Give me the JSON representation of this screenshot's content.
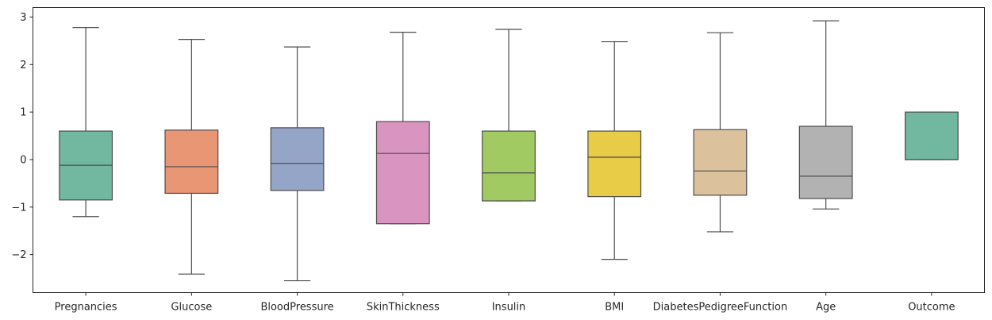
{
  "chart_data": {
    "type": "box",
    "title": "",
    "xlabel": "",
    "ylabel": "",
    "ylim": [
      -2.8,
      3.2
    ],
    "yticks": [
      {
        "value": 3,
        "label": "3"
      },
      {
        "value": 2,
        "label": "2"
      },
      {
        "value": 1,
        "label": "1"
      },
      {
        "value": 0,
        "label": "0"
      },
      {
        "value": -1,
        "label": "−1"
      },
      {
        "value": -2,
        "label": "−2"
      }
    ],
    "grid": false,
    "categories": [
      "Pregnancies",
      "Glucose",
      "BloodPressure",
      "SkinThickness",
      "Insulin",
      "BMI",
      "DiabetesPedigreeFunction",
      "Age",
      "Outcome"
    ],
    "boxes": [
      {
        "category": "Pregnancies",
        "whisker_low": -1.2,
        "q1": -0.85,
        "median": -0.12,
        "q3": 0.6,
        "whisker_high": 2.78,
        "color": "#72b7a0"
      },
      {
        "category": "Glucose",
        "whisker_low": -2.41,
        "q1": -0.71,
        "median": -0.15,
        "q3": 0.62,
        "whisker_high": 2.53,
        "color": "#e99675"
      },
      {
        "category": "BloodPressure",
        "whisker_low": -2.55,
        "q1": -0.65,
        "median": -0.08,
        "q3": 0.67,
        "whisker_high": 2.37,
        "color": "#95a5c8"
      },
      {
        "category": "SkinThickness",
        "whisker_low": -1.35,
        "q1": -1.35,
        "median": 0.13,
        "q3": 0.8,
        "whisker_high": 2.68,
        "color": "#da94c0"
      },
      {
        "category": "Insulin",
        "whisker_low": -0.87,
        "q1": -0.87,
        "median": -0.28,
        "q3": 0.6,
        "whisker_high": 2.74,
        "color": "#a1ca62"
      },
      {
        "category": "BMI",
        "whisker_low": -2.1,
        "q1": -0.78,
        "median": 0.05,
        "q3": 0.6,
        "whisker_high": 2.48,
        "color": "#e8cc47"
      },
      {
        "category": "DiabetesPedigreeFunction",
        "whisker_low": -1.52,
        "q1": -0.75,
        "median": -0.24,
        "q3": 0.63,
        "whisker_high": 2.67,
        "color": "#dbc29c"
      },
      {
        "category": "Age",
        "whisker_low": -1.04,
        "q1": -0.82,
        "median": -0.35,
        "q3": 0.7,
        "whisker_high": 2.92,
        "color": "#b2b2b2"
      },
      {
        "category": "Outcome",
        "whisker_low": 0.0,
        "q1": 0.0,
        "median": 0.0,
        "q3": 1.0,
        "whisker_high": 1.0,
        "color": "#72b7a0"
      }
    ]
  }
}
